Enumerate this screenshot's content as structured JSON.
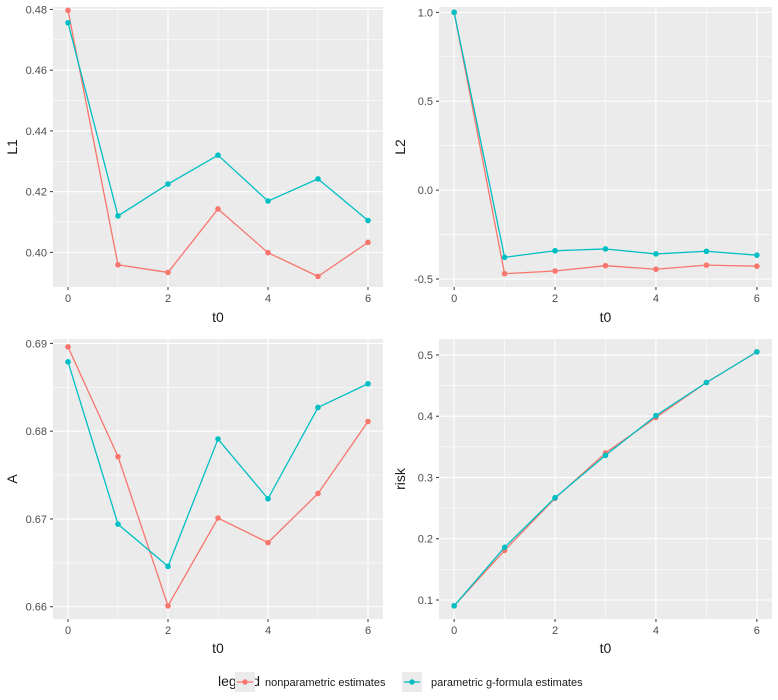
{
  "colors": {
    "nonparametric": "#F8766D",
    "parametric": "#00BFC4",
    "panel_bg": "#EBEBEB",
    "grid": "#FFFFFF"
  },
  "legend": {
    "title": "legend",
    "entries": [
      "nonparametric estimates",
      "parametric g-formula estimates"
    ]
  },
  "chart_data": [
    {
      "type": "line",
      "xlabel": "t0",
      "ylabel": "L1",
      "x": [
        0,
        1,
        2,
        3,
        4,
        5,
        6
      ],
      "xlim": [
        -0.3,
        6.3
      ],
      "ylim": [
        0.3886,
        0.4808
      ],
      "xticks": [
        0,
        2,
        4,
        6
      ],
      "xtick_labels": [
        "0",
        "2",
        "4",
        "6"
      ],
      "yticks": [
        0.4,
        0.42,
        0.44,
        0.46,
        0.48
      ],
      "ytick_labels": [
        "0.40",
        "0.42",
        "0.44",
        "0.46",
        "0.48"
      ],
      "series": [
        {
          "name": "nonparametric estimates",
          "values": [
            0.4797,
            0.3959,
            0.3934,
            0.4143,
            0.3999,
            0.3921,
            0.4033
          ]
        },
        {
          "name": "parametric g-formula estimates",
          "values": [
            0.4756,
            0.412,
            0.4225,
            0.432,
            0.4169,
            0.4242,
            0.4105
          ]
        }
      ]
    },
    {
      "type": "line",
      "xlabel": "t0",
      "ylabel": "L2",
      "x": [
        0,
        1,
        2,
        3,
        4,
        5,
        6
      ],
      "xlim": [
        -0.3,
        6.3
      ],
      "ylim": [
        -0.545,
        1.03
      ],
      "xticks": [
        0,
        2,
        4,
        6
      ],
      "xtick_labels": [
        "0",
        "2",
        "4",
        "6"
      ],
      "yticks": [
        -0.5,
        0.0,
        0.5,
        1.0
      ],
      "ytick_labels": [
        "-0.5",
        "0.0",
        "0.5",
        "1.0"
      ],
      "series": [
        {
          "name": "nonparametric estimates",
          "values": [
            1.0,
            -0.47,
            -0.455,
            -0.425,
            -0.445,
            -0.422,
            -0.428
          ]
        },
        {
          "name": "parametric g-formula estimates",
          "values": [
            1.0,
            -0.378,
            -0.341,
            -0.331,
            -0.359,
            -0.344,
            -0.366
          ]
        }
      ]
    },
    {
      "type": "line",
      "xlabel": "t0",
      "ylabel": "A",
      "x": [
        0,
        1,
        2,
        3,
        4,
        5,
        6
      ],
      "xlim": [
        -0.3,
        6.3
      ],
      "ylim": [
        0.6586,
        0.6905
      ],
      "xticks": [
        0,
        2,
        4,
        6
      ],
      "xtick_labels": [
        "0",
        "2",
        "4",
        "6"
      ],
      "yticks": [
        0.66,
        0.67,
        0.68,
        0.69
      ],
      "ytick_labels": [
        "0.66",
        "0.67",
        "0.68",
        "0.69"
      ],
      "series": [
        {
          "name": "nonparametric estimates",
          "values": [
            0.6896,
            0.6771,
            0.6601,
            0.6701,
            0.6673,
            0.6729,
            0.6811
          ]
        },
        {
          "name": "parametric g-formula estimates",
          "values": [
            0.6879,
            0.6694,
            0.6646,
            0.6791,
            0.6723,
            0.6827,
            0.6854
          ]
        }
      ]
    },
    {
      "type": "line",
      "xlabel": "t0",
      "ylabel": "risk",
      "x": [
        0,
        1,
        2,
        3,
        4,
        5,
        6
      ],
      "xlim": [
        -0.3,
        6.3
      ],
      "ylim": [
        0.069,
        0.526
      ],
      "xticks": [
        0,
        2,
        4,
        6
      ],
      "xtick_labels": [
        "0",
        "2",
        "4",
        "6"
      ],
      "yticks": [
        0.1,
        0.2,
        0.3,
        0.4,
        0.5
      ],
      "ytick_labels": [
        "0.1",
        "0.2",
        "0.3",
        "0.4",
        "0.5"
      ],
      "series": [
        {
          "name": "nonparametric estimates",
          "values": [
            0.0905,
            0.181,
            0.266,
            0.34,
            0.398,
            0.455,
            0.505
          ]
        },
        {
          "name": "parametric g-formula estimates",
          "values": [
            0.0905,
            0.186,
            0.267,
            0.336,
            0.401,
            0.455,
            0.505
          ]
        }
      ]
    }
  ]
}
